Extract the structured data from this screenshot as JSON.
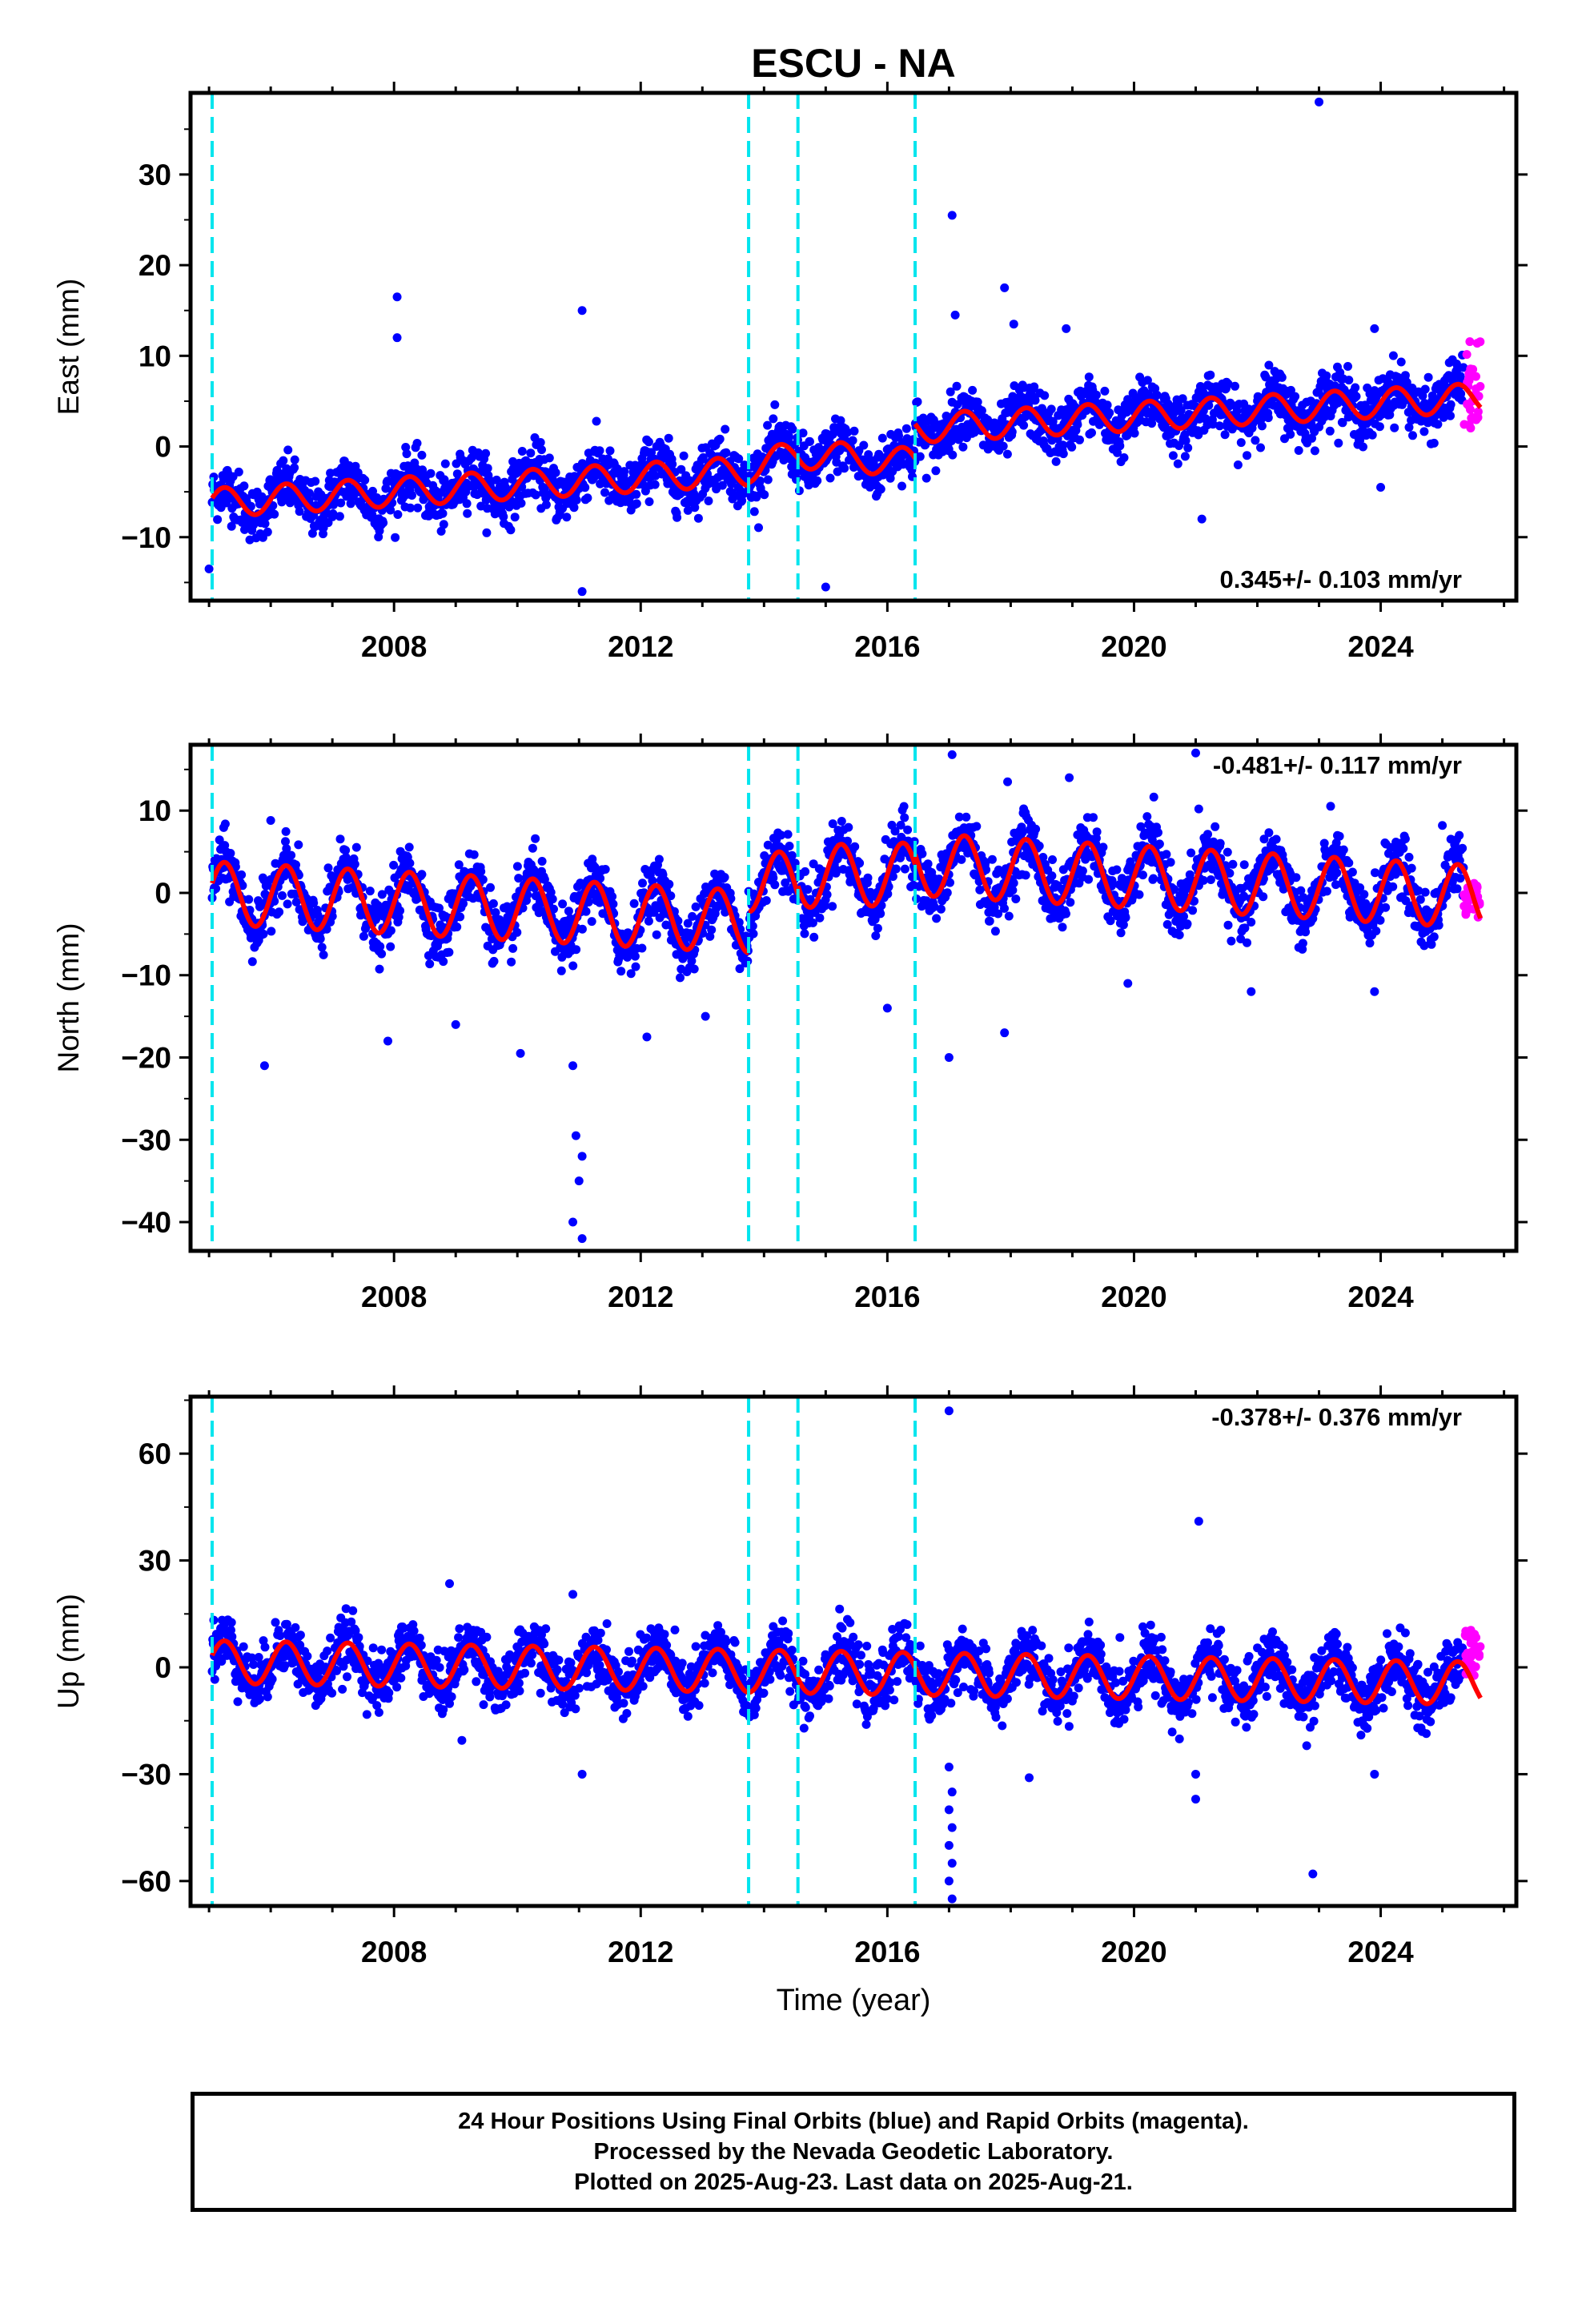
{
  "chart_data": [
    {
      "type": "scatter",
      "title": "ESCU - NA",
      "ylabel": "East (mm)",
      "xlabel": "",
      "xlim": [
        2004.7,
        2026.2
      ],
      "ylim": [
        -17,
        39
      ],
      "xticks": [
        "2008",
        "2012",
        "2016",
        "2020",
        "2024"
      ],
      "yticks": [
        "−10",
        "0",
        "10",
        "20",
        "30"
      ],
      "ytick_values": [
        -10,
        0,
        10,
        20,
        30
      ],
      "grid": false,
      "rate_label": "0.345+/- 0.103 mm/yr",
      "offsets": [
        2005.05,
        2013.75,
        2014.55,
        2016.45
      ],
      "series": [
        {
          "name": "Final Orbits (blue)",
          "color": "#0000ff",
          "data_start": 2005.0,
          "data_end": 2025.35,
          "base": [
            -5.8,
            -4.5,
            -3.2,
            -1.5,
            0.5,
            2.5,
            3.5,
            4.5,
            5.5
          ],
          "amp": 1.6,
          "scatter": 1.5,
          "outliers": [
            [
              2005.0,
              -13.5
            ],
            [
              2008.05,
              16.5
            ],
            [
              2008.05,
              12
            ],
            [
              2011.05,
              15
            ],
            [
              2011.05,
              -16
            ],
            [
              2013.1,
              -6
            ],
            [
              2017.05,
              25.5
            ],
            [
              2017.1,
              14.5
            ],
            [
              2017.9,
              17.5
            ],
            [
              2018.05,
              13.5
            ],
            [
              2021.1,
              -8
            ],
            [
              2023.0,
              38
            ],
            [
              2023.9,
              13
            ],
            [
              2024.0,
              -4.5
            ],
            [
              2015.0,
              -15.5
            ],
            [
              2018.9,
              13
            ]
          ]
        },
        {
          "name": "Rapid Orbits (magenta)",
          "color": "#ff00ff",
          "data_start": 2025.35,
          "data_end": 2025.62,
          "center": 7.0,
          "spread": 5.0
        }
      ],
      "model": {
        "name": "fit",
        "color": "#ff0000",
        "amp": 1.6,
        "segments": [
          [
            2005.05,
            2013.75,
            -6.2,
            -2.7
          ],
          [
            2013.75,
            2014.55,
            -2.4,
            -0.8
          ],
          [
            2014.55,
            2016.45,
            -0.8,
            -1.8
          ],
          [
            2016.45,
            2025.62,
            2.0,
            5.4
          ]
        ]
      }
    },
    {
      "type": "scatter",
      "title": "",
      "ylabel": "North (mm)",
      "xlabel": "",
      "xlim": [
        2004.7,
        2026.2
      ],
      "ylim": [
        -43.5,
        18
      ],
      "xticks": [
        "2008",
        "2012",
        "2016",
        "2020",
        "2024"
      ],
      "yticks": [
        "−40",
        "−30",
        "−20",
        "−10",
        "0",
        "10"
      ],
      "ytick_values": [
        -40,
        -30,
        -20,
        -10,
        0,
        10
      ],
      "grid": false,
      "rate_label": "-0.481+/- 0.117 mm/yr",
      "offsets": [
        2005.05,
        2013.75,
        2014.55,
        2016.45
      ],
      "series": [
        {
          "name": "Final Orbits (blue)",
          "color": "#0000ff",
          "data_start": 2005.0,
          "data_end": 2025.35,
          "amp": 3.8,
          "scatter": 1.8,
          "outliers": [
            [
              2005.9,
              -21
            ],
            [
              2006.0,
              8.8
            ],
            [
              2007.9,
              -18
            ],
            [
              2009.0,
              -16
            ],
            [
              2010.05,
              -19.5
            ],
            [
              2010.9,
              -21
            ],
            [
              2010.95,
              -29.5
            ],
            [
              2010.9,
              -40
            ],
            [
              2011.05,
              -42
            ],
            [
              2011.0,
              -35
            ],
            [
              2011.05,
              -32
            ],
            [
              2012.1,
              -17.5
            ],
            [
              2013.05,
              -15
            ],
            [
              2016.0,
              -14
            ],
            [
              2017.0,
              -20
            ],
            [
              2017.05,
              16.8
            ],
            [
              2017.95,
              13.5
            ],
            [
              2018.95,
              14
            ],
            [
              2017.9,
              -17
            ],
            [
              2019.9,
              -11
            ],
            [
              2021.0,
              17
            ],
            [
              2021.05,
              10.2
            ],
            [
              2021.9,
              -12
            ],
            [
              2023.9,
              -12
            ],
            [
              2025.0,
              8.2
            ]
          ]
        },
        {
          "name": "Rapid Orbits (magenta)",
          "color": "#ff00ff",
          "data_start": 2025.35,
          "data_end": 2025.62,
          "center": -1.0,
          "spread": 2.5
        }
      ],
      "model": {
        "name": "fit",
        "color": "#ff0000",
        "amp": 3.8,
        "segments": [
          [
            2005.05,
            2013.75,
            0.0,
            -3.5
          ],
          [
            2013.75,
            2014.55,
            1.5,
            1.0
          ],
          [
            2014.55,
            2016.45,
            2.0,
            2.3
          ],
          [
            2016.45,
            2025.62,
            3.5,
            -0.5
          ]
        ]
      }
    },
    {
      "type": "scatter",
      "title": "",
      "ylabel": "Up (mm)",
      "xlabel": "Time (year)",
      "xlim": [
        2004.7,
        2026.2
      ],
      "ylim": [
        -67,
        76
      ],
      "xticks": [
        "2008",
        "2012",
        "2016",
        "2020",
        "2024"
      ],
      "yticks": [
        "−60",
        "−30",
        "0",
        "30",
        "60"
      ],
      "ytick_values": [
        -60,
        -30,
        0,
        30,
        60
      ],
      "grid": false,
      "rate_label": "-0.378+/- 0.376 mm/yr",
      "offsets": [
        2005.05,
        2013.75,
        2014.55,
        2016.45
      ],
      "series": [
        {
          "name": "Final Orbits (blue)",
          "color": "#0000ff",
          "data_start": 2005.0,
          "data_end": 2025.35,
          "amp": 6.0,
          "scatter": 4.0,
          "outliers": [
            [
              2008.9,
              23.5
            ],
            [
              2009.1,
              -20.5
            ],
            [
              2010.9,
              20.5
            ],
            [
              2011.05,
              -30
            ],
            [
              2017.0,
              72
            ],
            [
              2017.0,
              -28
            ],
            [
              2017.05,
              -35
            ],
            [
              2017.0,
              -40
            ],
            [
              2017.05,
              -45
            ],
            [
              2017.0,
              -50
            ],
            [
              2017.05,
              -55
            ],
            [
              2017.0,
              -60
            ],
            [
              2017.05,
              -65
            ],
            [
              2018.3,
              -31
            ],
            [
              2021.05,
              41
            ],
            [
              2021.0,
              -30
            ],
            [
              2021.0,
              -37
            ],
            [
              2022.9,
              -58
            ],
            [
              2023.9,
              -30
            ],
            [
              2022.8,
              -22
            ],
            [
              2024.6,
              -17
            ]
          ]
        },
        {
          "name": "Rapid Orbits (magenta)",
          "color": "#ff00ff",
          "data_start": 2025.35,
          "data_end": 2025.62,
          "center": 4.0,
          "spread": 7.0
        }
      ],
      "model": {
        "name": "fit",
        "color": "#ff0000",
        "amp": 6.0,
        "segments": [
          [
            2005.05,
            2025.62,
            1.5,
            -4.5
          ]
        ]
      }
    }
  ],
  "caption": {
    "line1": "24 Hour Positions Using Final Orbits (blue) and Rapid Orbits (magenta).",
    "line2": "Processed by the Nevada Geodetic Laboratory.",
    "line3": "Plotted on 2025-Aug-23. Last data on 2025-Aug-21."
  },
  "colors": {
    "final": "#0000ff",
    "rapid": "#ff00ff",
    "model": "#ff0000",
    "offset_line": "#00e5ee",
    "frame": "#000000"
  }
}
